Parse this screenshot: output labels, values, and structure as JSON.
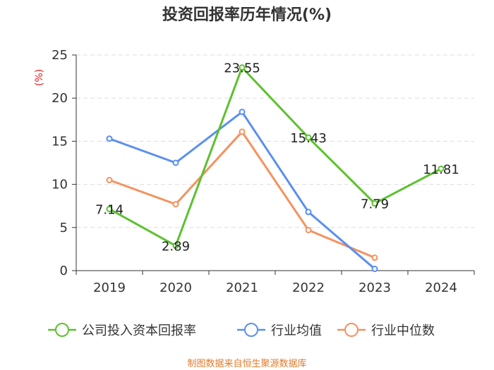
{
  "chart_data": {
    "type": "line",
    "title": "投资回报率历年情况(%)",
    "y_unit": "(%)",
    "categories": [
      "2019",
      "2020",
      "2021",
      "2022",
      "2023",
      "2024"
    ],
    "ylim": [
      0,
      25
    ],
    "yticks": [
      0,
      5,
      10,
      15,
      20,
      25
    ],
    "grid": true,
    "legend_position": "bottom",
    "series": [
      {
        "name": "公司投入资本回报率",
        "color": "#5cc12f",
        "values": [
          7.14,
          2.89,
          23.55,
          15.43,
          7.79,
          11.81
        ],
        "labels": [
          "7.14",
          "2.89",
          "23.55",
          "15.43",
          "7.79",
          "11.81"
        ]
      },
      {
        "name": "行业均值",
        "color": "#5b8ff0",
        "values": [
          15.3,
          12.5,
          18.4,
          6.8,
          0.2,
          null
        ]
      },
      {
        "name": "行业中位数",
        "color": "#f5925e",
        "values": [
          10.5,
          7.7,
          16.1,
          4.7,
          1.5,
          null
        ]
      }
    ],
    "source": "制图数据来自恒生聚源数据库",
    "colors": {
      "axis": "#333333",
      "grid": "#dddddd",
      "unit": "#e02020",
      "source": "#e07a2c"
    }
  }
}
